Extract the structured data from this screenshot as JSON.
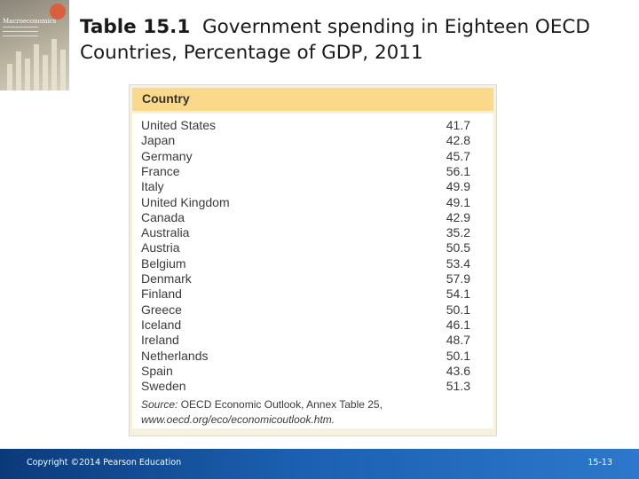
{
  "cover": {
    "book_title": "Macroeconomics"
  },
  "slide": {
    "title_label": "Table 15.1",
    "title_text": "Government spending in Eighteen OECD Countries, Percentage of GDP, 2011"
  },
  "table": {
    "column_header": "Country",
    "rows": [
      {
        "country": "United States",
        "value": "41.7"
      },
      {
        "country": "Japan",
        "value": "42.8"
      },
      {
        "country": "Germany",
        "value": "45.7"
      },
      {
        "country": "France",
        "value": "56.1"
      },
      {
        "country": "Italy",
        "value": "49.9"
      },
      {
        "country": "United Kingdom",
        "value": "49.1"
      },
      {
        "country": "Canada",
        "value": "42.9"
      },
      {
        "country": "Australia",
        "value": "35.2"
      },
      {
        "country": "Austria",
        "value": "50.5"
      },
      {
        "country": "Belgium",
        "value": "53.4"
      },
      {
        "country": "Denmark",
        "value": "57.9"
      },
      {
        "country": "Finland",
        "value": "54.1"
      },
      {
        "country": "Greece",
        "value": "50.1"
      },
      {
        "country": "Iceland",
        "value": "46.1"
      },
      {
        "country": "Ireland",
        "value": "48.7"
      },
      {
        "country": "Netherlands",
        "value": "50.1"
      },
      {
        "country": "Spain",
        "value": "43.6"
      },
      {
        "country": "Sweden",
        "value": "51.3"
      }
    ],
    "source_prefix": "Source:",
    "source_text": "OECD Economic Outlook, Annex Table 25,",
    "source_url": "www.oecd.org/eco/economicoutlook.htm."
  },
  "footer": {
    "copyright": "Copyright ©2014 Pearson Education",
    "slide_number": "15-13"
  },
  "colors": {
    "header_fill": "#fbd98a",
    "panel_fill": "#f6f1df",
    "footer_blue": "#1b5fb0"
  }
}
